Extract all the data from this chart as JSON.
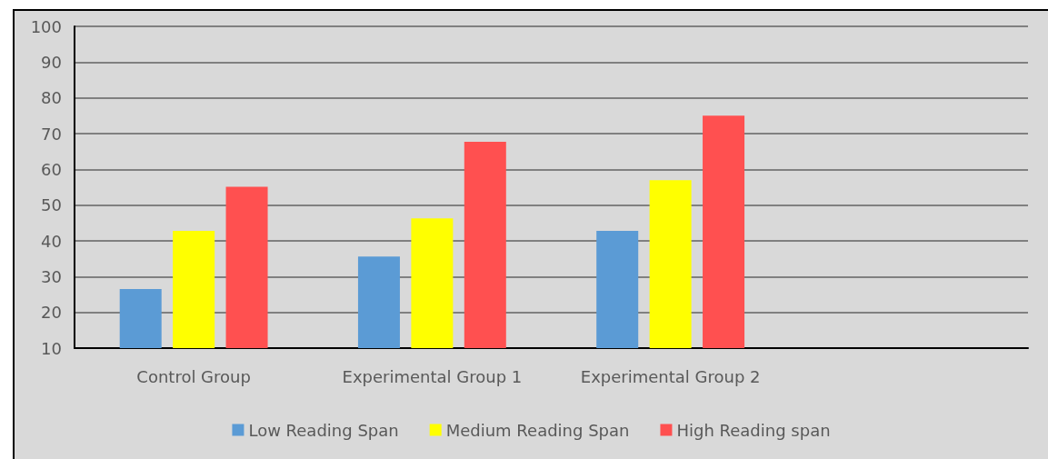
{
  "chart_data": {
    "type": "bar",
    "categories": [
      "Control Group",
      "Experimental Group 1",
      "Experimental Group 2",
      null
    ],
    "series": [
      {
        "name": "Low Reading Span",
        "color": "#5b9bd5",
        "values": [
          26.5,
          35.6,
          42.8,
          null
        ]
      },
      {
        "name": "Medium Reading Span",
        "color": "#ffff00",
        "values": [
          42.8,
          46.3,
          57.0,
          null
        ]
      },
      {
        "name": "High Reading span",
        "color": "#ff5050",
        "values": [
          55.1,
          67.7,
          75.0,
          null
        ]
      }
    ],
    "ylim": [
      10,
      100
    ],
    "yticks": [
      10,
      20,
      30,
      40,
      50,
      60,
      70,
      80,
      90,
      100
    ],
    "grid": "y",
    "legend": "bottom"
  }
}
